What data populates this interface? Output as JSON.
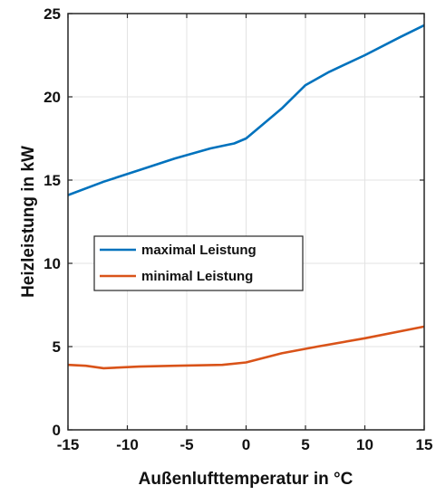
{
  "chart_data": {
    "type": "line",
    "xlabel": "Außenlufttemperatur in °C",
    "ylabel": "Heizleistung in kW",
    "xlim": [
      -15,
      15
    ],
    "ylim": [
      0,
      25
    ],
    "xticks": [
      -15,
      -10,
      -5,
      0,
      5,
      10,
      15
    ],
    "yticks": [
      0,
      5,
      10,
      15,
      20,
      25
    ],
    "xtick_labels": [
      "-15",
      "-10",
      "-5",
      "0",
      "5",
      "10",
      "15"
    ],
    "ytick_labels": [
      "0",
      "5",
      "10",
      "15",
      "20",
      "25"
    ],
    "grid": true,
    "legend_position": "center-left",
    "series": [
      {
        "name": "maximal Leistung",
        "color": "#0072BD",
        "x": [
          -15,
          -12,
          -9,
          -6,
          -3,
          -1,
          0,
          1,
          3,
          5,
          7,
          10,
          13,
          15
        ],
        "y": [
          14.1,
          14.9,
          15.6,
          16.3,
          16.9,
          17.2,
          17.5,
          18.1,
          19.3,
          20.7,
          21.5,
          22.5,
          23.6,
          24.3
        ]
      },
      {
        "name": "minimal Leistung",
        "color": "#D95319",
        "x": [
          -15,
          -13.5,
          -12,
          -9,
          -6,
          -2,
          0,
          3,
          6,
          10,
          15
        ],
        "y": [
          3.9,
          3.85,
          3.7,
          3.8,
          3.85,
          3.9,
          4.05,
          4.6,
          5.0,
          5.5,
          6.2
        ]
      }
    ]
  }
}
